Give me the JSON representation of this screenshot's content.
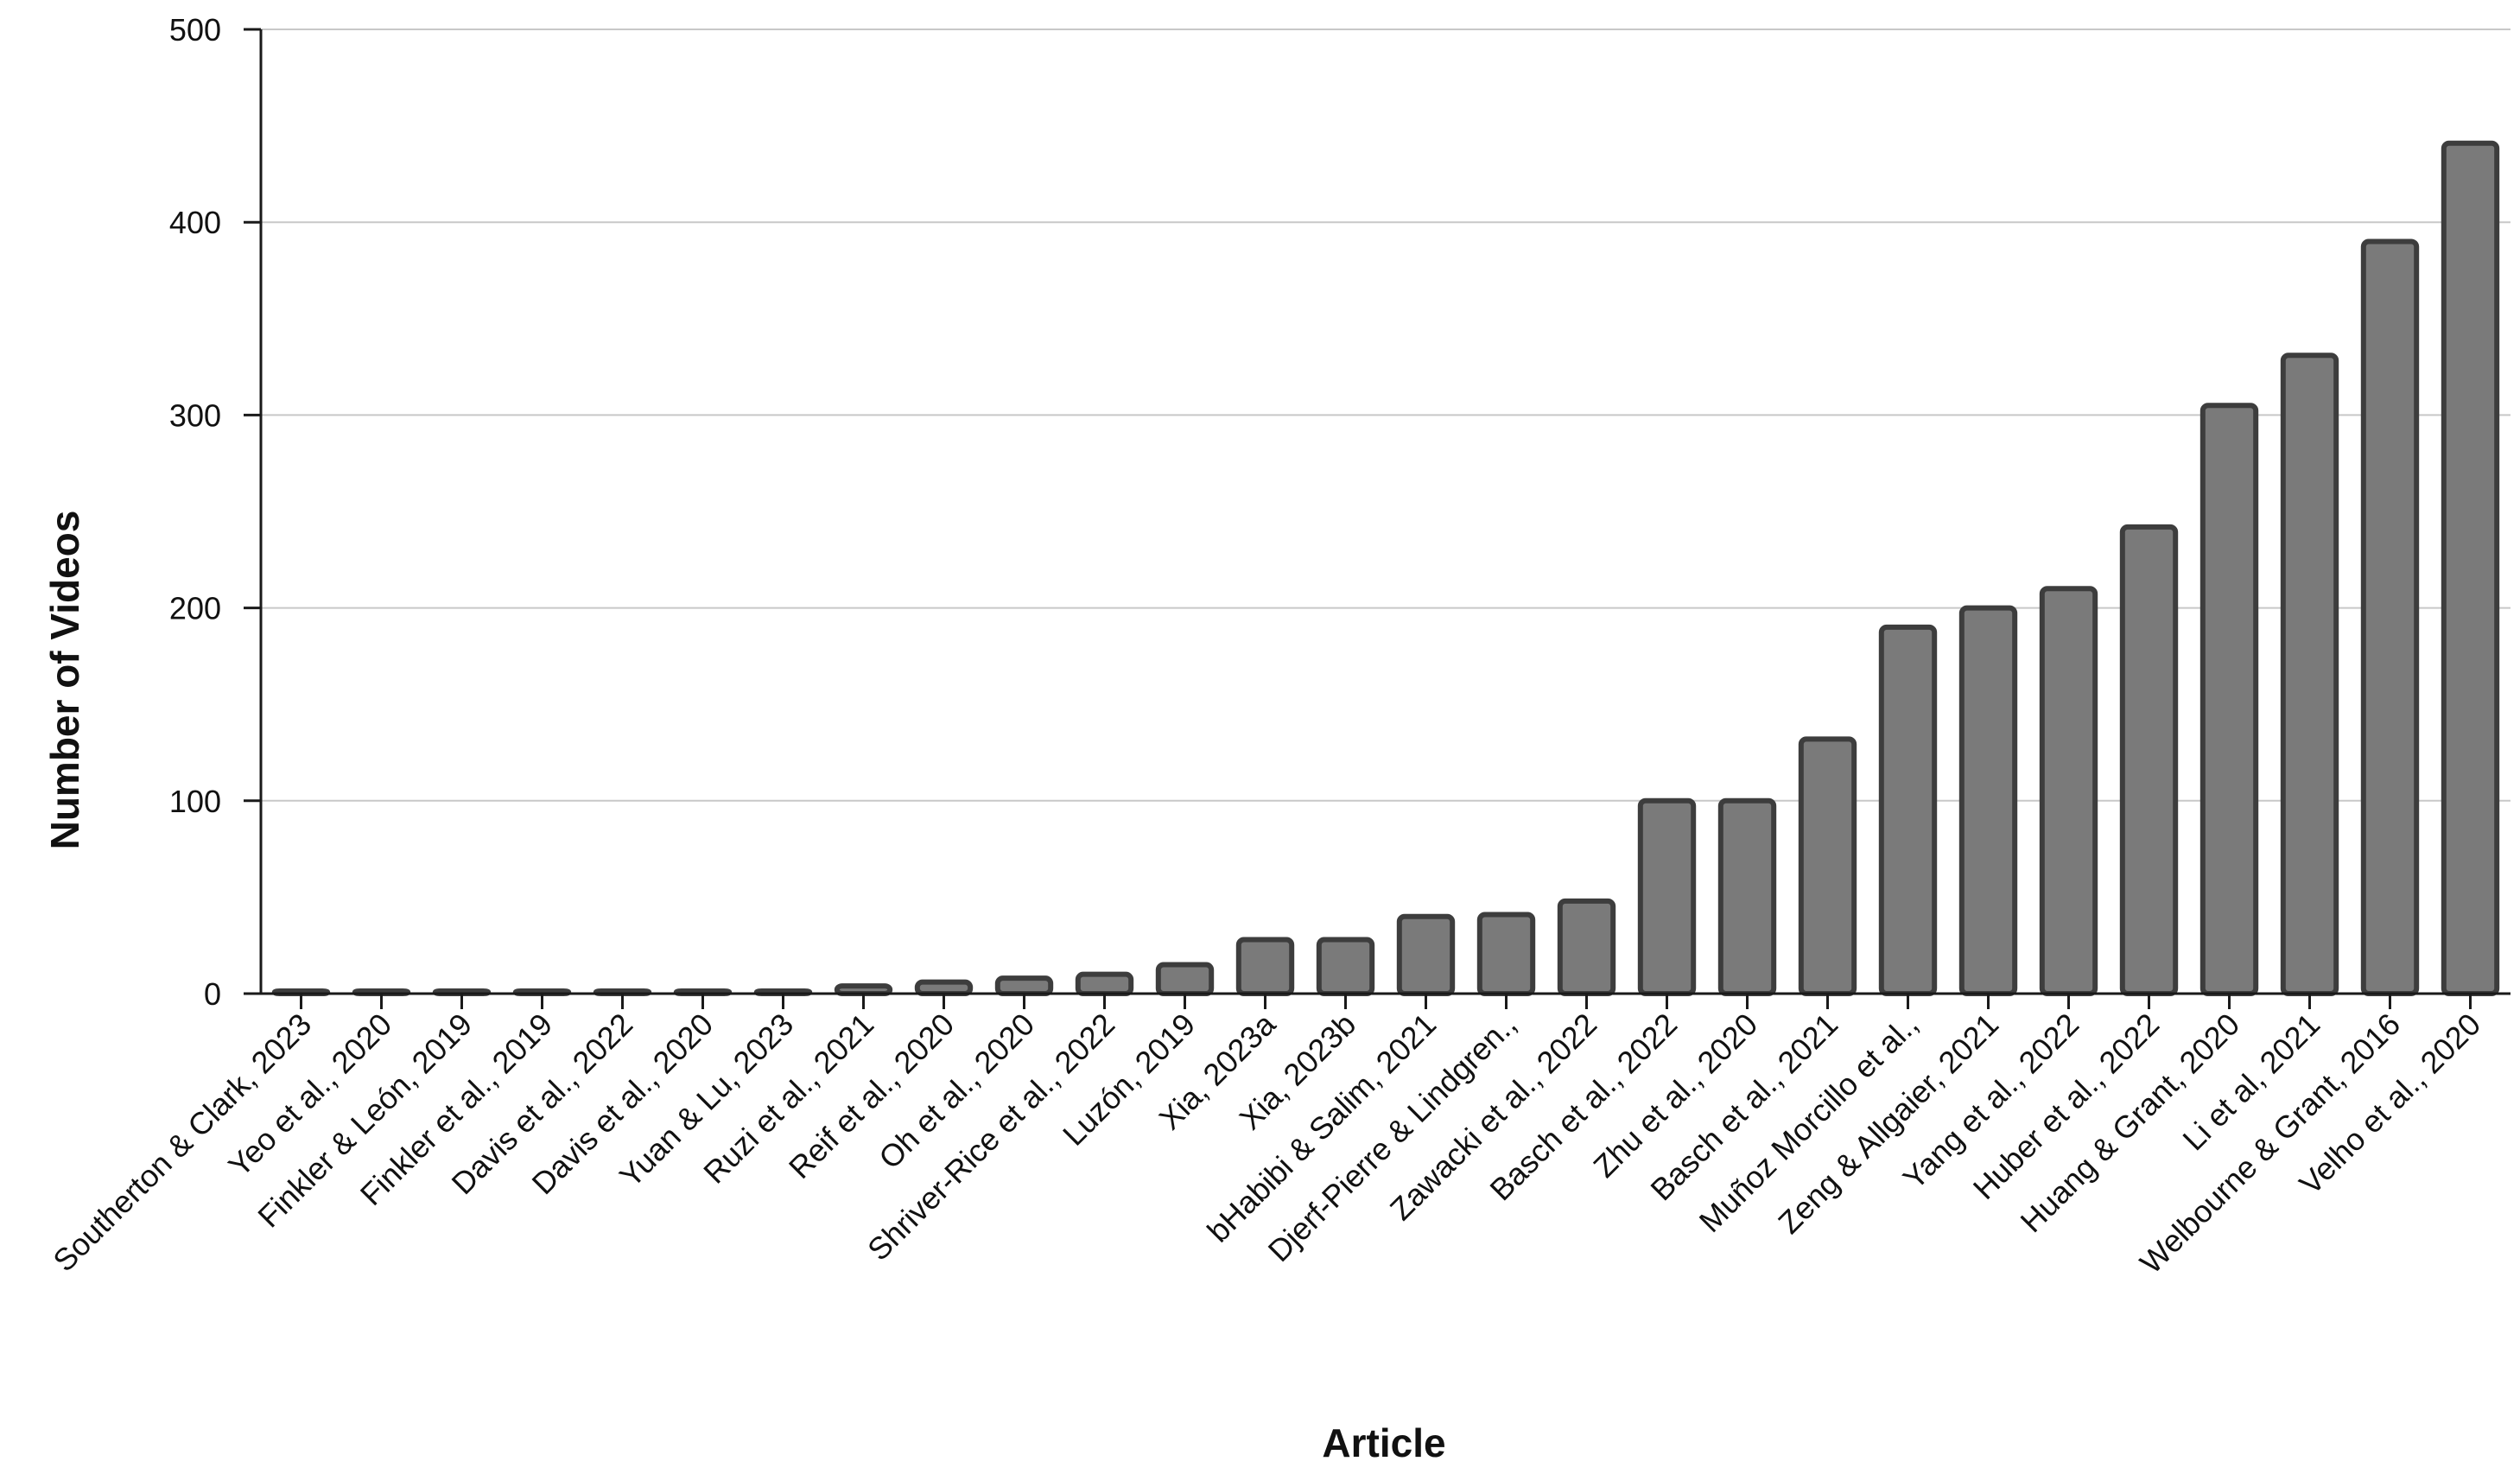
{
  "chart_data": {
    "type": "bar",
    "title": "",
    "xlabel": "Article",
    "ylabel": "Number of Videos",
    "ylim": [
      0,
      500
    ],
    "yticks": [
      0,
      100,
      200,
      300,
      400,
      500
    ],
    "ytick_labels": [
      "0",
      "100",
      "200",
      "300",
      "400",
      "500"
    ],
    "grid": "horizontal",
    "legend": "none",
    "colors": {
      "bar_fill": "#7a7a7a",
      "bar_stroke": "#3d3d3d",
      "grid": "#c8c8c8",
      "axis": "#1a1a1a"
    },
    "categories": [
      "Southerton & Clark, 2023",
      "Yeo et al., 2020",
      "Finkler & León, 2019",
      "Finkler et al., 2019",
      "Davis et al., 2022",
      "Davis et al., 2020",
      "Yuan & Lu, 2023",
      "Ruzi et al., 2021",
      "Reif et al., 2020",
      "Oh et al., 2020",
      "Shriver-Rice et al., 2022",
      "Luzón, 2019",
      "Xia, 2023a",
      "Xia, 2023b",
      "bHabibi & Salim, 2021",
      "Djerf-Pierre & Lindgren.,",
      "Zawacki et al., 2022",
      "Basch et al., 2022",
      "Zhu et al., 2020",
      "Basch et al., 2021",
      "Muñoz Morcillo et al.,",
      "Zeng & Allgaier, 2021",
      "Yang et al., 2022",
      "Huber et al., 2022",
      "Huang & Grant, 2020",
      "Li et al, 2021",
      "Welbourne & Grant, 2016",
      "Velho et al., 2020"
    ],
    "values": [
      0,
      1,
      1,
      1,
      1,
      1,
      1,
      4,
      6,
      8,
      10,
      15,
      28,
      28,
      40,
      41,
      48,
      100,
      100,
      132,
      190,
      200,
      210,
      242,
      305,
      331,
      390,
      441
    ]
  }
}
